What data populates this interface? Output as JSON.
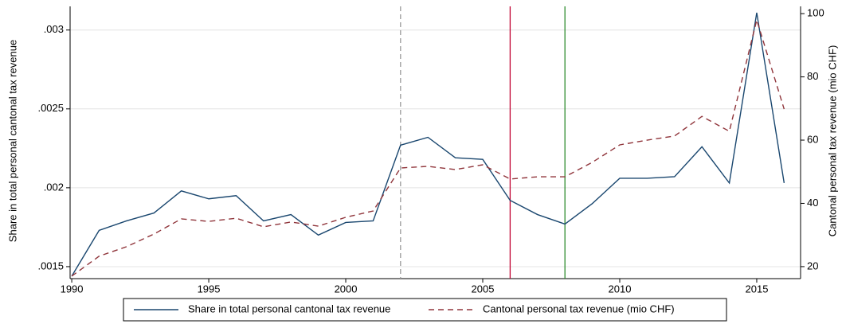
{
  "chart_data": {
    "type": "line",
    "y_label": "Share in total personal cantonal tax revenue",
    "y2_label": "Cantonal personal tax revenue (mio CHF)",
    "x": [
      1990,
      1991,
      1992,
      1993,
      1994,
      1995,
      1996,
      1997,
      1998,
      1999,
      2000,
      2001,
      2002,
      2003,
      2004,
      2005,
      2006,
      2007,
      2008,
      2009,
      2010,
      2011,
      2012,
      2013,
      2014,
      2015,
      2016
    ],
    "series": [
      {
        "name": "Share in total personal cantonal tax revenue",
        "color": "#1a476f",
        "dashed": false,
        "values": [
          0.00144,
          0.00173,
          0.00179,
          0.00184,
          0.00198,
          0.00193,
          0.00195,
          0.00179,
          0.00183,
          0.0017,
          0.00178,
          0.00179,
          0.00227,
          0.00232,
          0.00219,
          0.00218,
          0.00192,
          0.00183,
          0.00177,
          0.0019,
          0.00206,
          0.00206,
          0.00207,
          0.00226,
          0.00203,
          0.00311,
          0.00203
        ]
      },
      {
        "name": "Cantonal personal tax revenue (mio CHF)",
        "color": "#90353b",
        "dashed": true,
        "axis": "y2",
        "values": [
          17,
          23.3,
          26.3,
          30.3,
          35.1,
          34.3,
          35.3,
          32.6,
          34.1,
          32.8,
          35.6,
          37.6,
          51.2,
          51.7,
          50.7,
          52.2,
          47.7,
          48.4,
          48.4,
          53,
          58.5,
          60,
          61.3,
          67.5,
          62.8,
          98,
          69.8
        ]
      }
    ],
    "reference_lines": [
      {
        "x": 2002,
        "color": "#999999",
        "dashed": true
      },
      {
        "x": 2006,
        "color": "#c10534",
        "dashed": false
      },
      {
        "x": 2008,
        "color": "#2e8b2e",
        "dashed": false
      }
    ],
    "xlim": [
      1989.94,
      2016.6
    ],
    "xticks": [
      1990,
      1995,
      2000,
      2005,
      2010,
      2015
    ],
    "ylim": [
      0.001424,
      0.00315
    ],
    "yticks": [
      {
        "value": 0.0015,
        "label": ".0015"
      },
      {
        "value": 0.002,
        "label": ".002"
      },
      {
        "value": 0.0025,
        "label": ".0025"
      },
      {
        "value": 0.003,
        "label": ".003"
      }
    ],
    "y2lim": [
      16.2,
      102.3
    ],
    "y2ticks": [
      20,
      40,
      60,
      80,
      100
    ],
    "grid": true,
    "legend": "bottom"
  }
}
